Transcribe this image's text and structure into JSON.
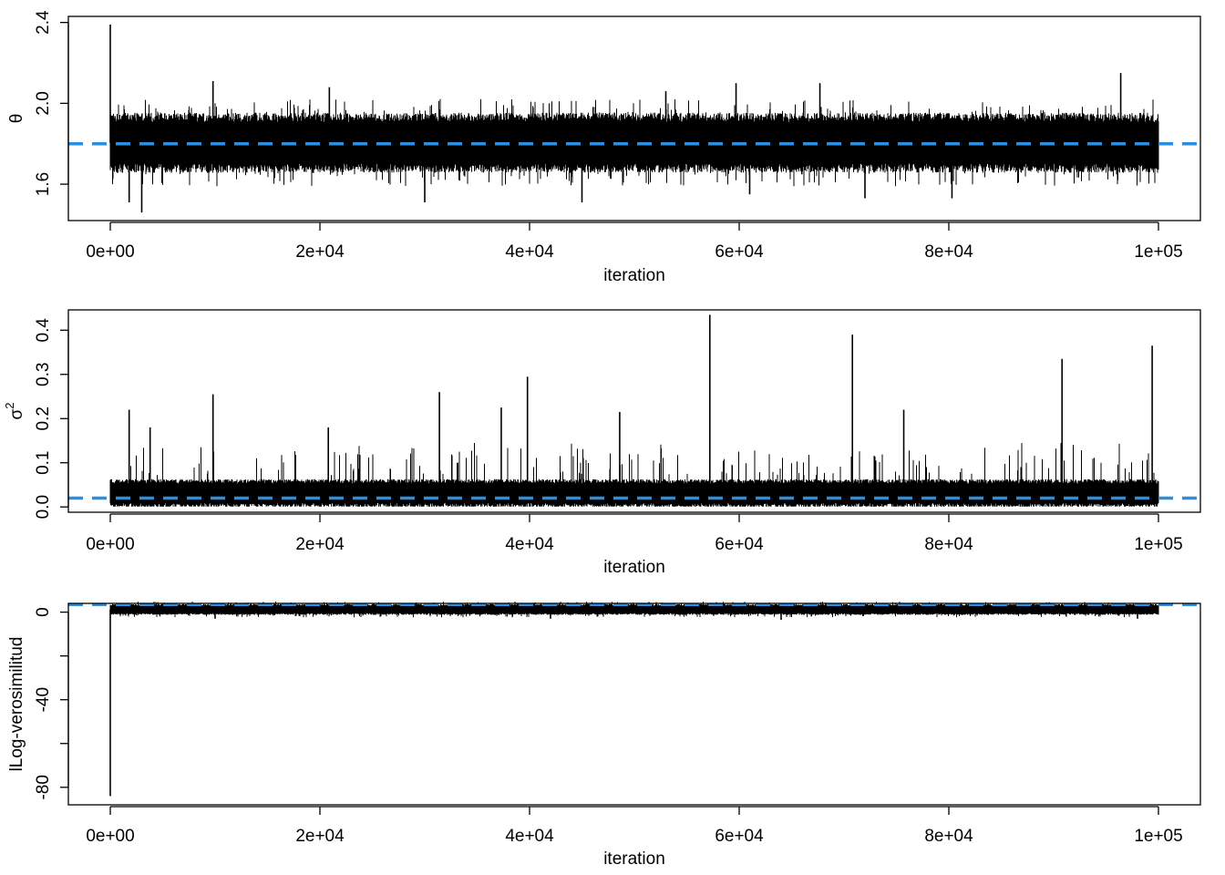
{
  "chart_data": [
    {
      "type": "line",
      "title": "",
      "xlabel": "iteration",
      "ylabel": "θ",
      "xlim": [
        -4000,
        104000
      ],
      "ylim": [
        1.42,
        2.43
      ],
      "xticks": [
        0,
        20000,
        40000,
        60000,
        80000,
        100000
      ],
      "xtick_labels": [
        "0e+00",
        "2e+04",
        "4e+04",
        "6e+04",
        "8e+04",
        "1e+05"
      ],
      "yticks": [
        1.6,
        2.0,
        2.4
      ],
      "ytick_labels": [
        "1.6",
        "2.0",
        "2.4"
      ],
      "series": [
        {
          "n_iterations": 100000,
          "color": "#000000",
          "typical_band": [
            1.67,
            1.94
          ],
          "spikes": [
            {
              "x": 0,
              "y": 2.39
            },
            {
              "x": 3000,
              "y": 1.46
            },
            {
              "x": 1800,
              "y": 1.51
            },
            {
              "x": 9800,
              "y": 2.11
            },
            {
              "x": 20900,
              "y": 2.08
            },
            {
              "x": 30000,
              "y": 1.51
            },
            {
              "x": 45000,
              "y": 1.51
            },
            {
              "x": 53000,
              "y": 2.06
            },
            {
              "x": 59700,
              "y": 2.1
            },
            {
              "x": 61000,
              "y": 1.55
            },
            {
              "x": 67700,
              "y": 2.1
            },
            {
              "x": 72000,
              "y": 1.53
            },
            {
              "x": 80300,
              "y": 1.53
            },
            {
              "x": 96400,
              "y": 2.15
            }
          ]
        }
      ],
      "reference_line": {
        "y": 1.8,
        "color": "#2b8ee0",
        "style": "dashed"
      }
    },
    {
      "type": "line",
      "title": "",
      "xlabel": "iteration",
      "ylabel": "σ",
      "ylabel_superscript": "2",
      "xlim": [
        -4000,
        104000
      ],
      "ylim": [
        -0.012,
        0.446
      ],
      "xticks": [
        0,
        20000,
        40000,
        60000,
        80000,
        100000
      ],
      "xtick_labels": [
        "0e+00",
        "2e+04",
        "4e+04",
        "6e+04",
        "8e+04",
        "1e+05"
      ],
      "yticks": [
        0.0,
        0.1,
        0.2,
        0.3,
        0.4
      ],
      "ytick_labels": [
        "0.0",
        "0.1",
        "0.2",
        "0.3",
        "0.4"
      ],
      "series": [
        {
          "n_iterations": 100000,
          "color": "#000000",
          "typical_band": [
            0.002,
            0.06
          ],
          "spikes": [
            {
              "x": 1800,
              "y": 0.22
            },
            {
              "x": 3800,
              "y": 0.18
            },
            {
              "x": 9800,
              "y": 0.255
            },
            {
              "x": 20800,
              "y": 0.18
            },
            {
              "x": 31400,
              "y": 0.26
            },
            {
              "x": 37300,
              "y": 0.225
            },
            {
              "x": 39800,
              "y": 0.295
            },
            {
              "x": 48600,
              "y": 0.215
            },
            {
              "x": 57200,
              "y": 0.435
            },
            {
              "x": 70800,
              "y": 0.39
            },
            {
              "x": 75700,
              "y": 0.22
            },
            {
              "x": 90800,
              "y": 0.335
            },
            {
              "x": 99400,
              "y": 0.365
            }
          ]
        }
      ],
      "reference_line": {
        "y": 0.02,
        "color": "#2b8ee0",
        "style": "dashed"
      }
    },
    {
      "type": "line",
      "title": "",
      "xlabel": "iteration",
      "ylabel": "lLog-verosimilitud",
      "xlim": [
        -4000,
        104000
      ],
      "ylim": [
        -88,
        4
      ],
      "xticks": [
        0,
        20000,
        40000,
        60000,
        80000,
        100000
      ],
      "xtick_labels": [
        "0e+00",
        "2e+04",
        "4e+04",
        "6e+04",
        "8e+04",
        "1e+05"
      ],
      "yticks": [
        -80,
        -60,
        -40,
        -20,
        0
      ],
      "ytick_labels": [
        "-80",
        "",
        "-40",
        "",
        "0"
      ],
      "series": [
        {
          "n_iterations": 100000,
          "color": "#000000",
          "typical_band": [
            -1,
            3.5
          ],
          "spikes": [
            {
              "x": 0,
              "y": -84
            },
            {
              "x": 10000,
              "y": -3
            },
            {
              "x": 42000,
              "y": -3
            },
            {
              "x": 64000,
              "y": -3.5
            },
            {
              "x": 98000,
              "y": -3
            }
          ]
        }
      ],
      "reference_line": {
        "y": 3.5,
        "color": "#2b8ee0",
        "style": "dashed"
      }
    }
  ]
}
